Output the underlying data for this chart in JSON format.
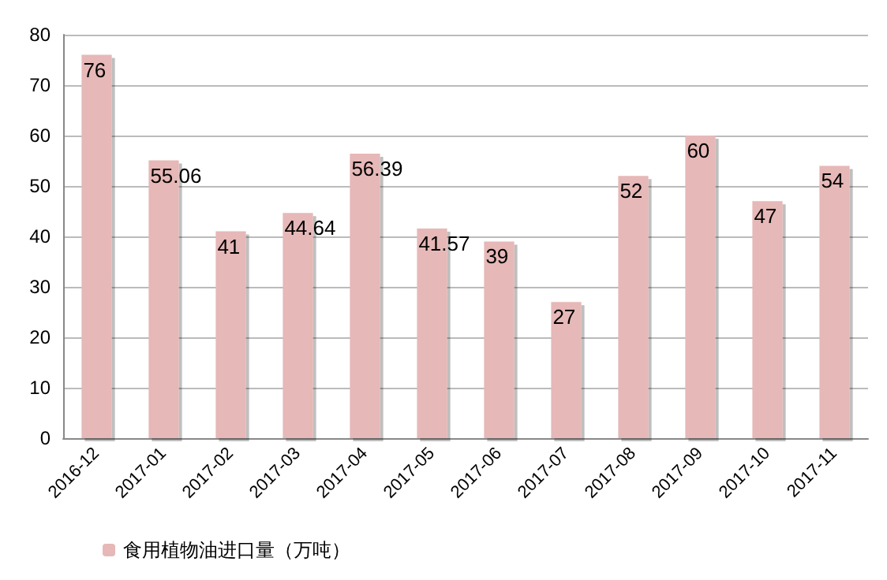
{
  "chart_data": {
    "type": "bar",
    "categories": [
      "2016-12",
      "2017-01",
      "2017-02",
      "2017-03",
      "2017-04",
      "2017-05",
      "2017-06",
      "2017-07",
      "2017-08",
      "2017-09",
      "2017-10",
      "2017-11"
    ],
    "series": [
      {
        "name": "食用植物油进口量（万吨）",
        "color": "#e6b8b7",
        "values": [
          76,
          55.06,
          41,
          44.64,
          56.39,
          41.57,
          39,
          27,
          52,
          60,
          47,
          54
        ]
      }
    ],
    "ylim": [
      0,
      80
    ],
    "yticks": [
      0,
      10,
      20,
      30,
      40,
      50,
      60,
      70,
      80
    ],
    "grid": "y",
    "legend": "bottom left",
    "data_labels": true
  }
}
